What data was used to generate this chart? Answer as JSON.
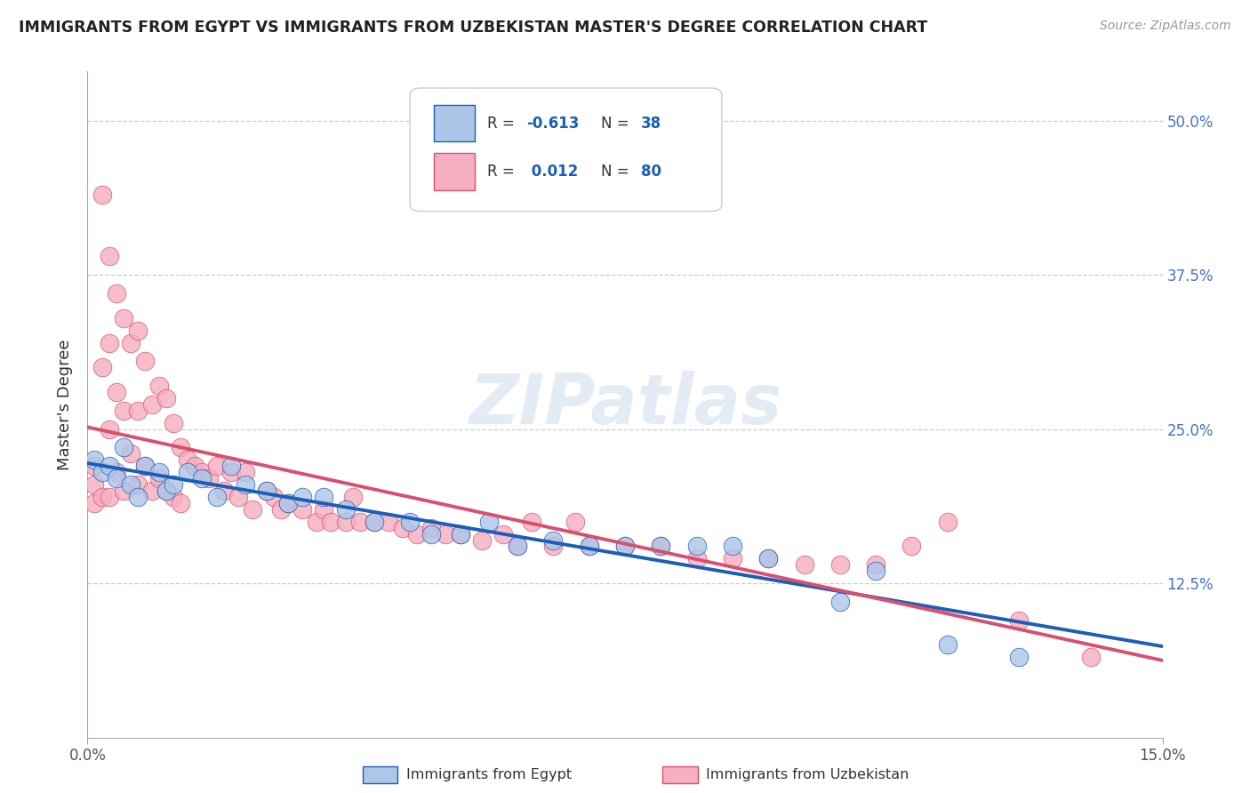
{
  "title": "IMMIGRANTS FROM EGYPT VS IMMIGRANTS FROM UZBEKISTAN MASTER'S DEGREE CORRELATION CHART",
  "source": "Source: ZipAtlas.com",
  "ylabel": "Master's Degree",
  "y_ticks": [
    0.125,
    0.25,
    0.375,
    0.5
  ],
  "y_tick_labels": [
    "12.5%",
    "25.0%",
    "37.5%",
    "50.0%"
  ],
  "x_lim": [
    0.0,
    0.15
  ],
  "y_lim": [
    0.0,
    0.54
  ],
  "watermark": "ZIPatlas",
  "blue_color": "#adc6e8",
  "pink_color": "#f5afc0",
  "blue_line_color": "#1a5eb8",
  "pink_line_color": "#d94f6e",
  "egypt_x": [
    0.001,
    0.002,
    0.003,
    0.004,
    0.005,
    0.006,
    0.007,
    0.008,
    0.01,
    0.011,
    0.012,
    0.014,
    0.016,
    0.018,
    0.02,
    0.022,
    0.025,
    0.028,
    0.03,
    0.033,
    0.036,
    0.04,
    0.045,
    0.048,
    0.052,
    0.056,
    0.06,
    0.065,
    0.07,
    0.075,
    0.08,
    0.085,
    0.09,
    0.095,
    0.105,
    0.11,
    0.12,
    0.13
  ],
  "egypt_y": [
    0.225,
    0.215,
    0.22,
    0.21,
    0.235,
    0.205,
    0.195,
    0.22,
    0.215,
    0.2,
    0.205,
    0.215,
    0.21,
    0.195,
    0.22,
    0.205,
    0.2,
    0.19,
    0.195,
    0.195,
    0.185,
    0.175,
    0.175,
    0.165,
    0.165,
    0.175,
    0.155,
    0.16,
    0.155,
    0.155,
    0.155,
    0.155,
    0.155,
    0.145,
    0.11,
    0.135,
    0.075,
    0.065
  ],
  "uzbek_x": [
    0.001,
    0.001,
    0.001,
    0.002,
    0.002,
    0.002,
    0.003,
    0.003,
    0.003,
    0.003,
    0.004,
    0.004,
    0.004,
    0.005,
    0.005,
    0.005,
    0.006,
    0.006,
    0.007,
    0.007,
    0.007,
    0.008,
    0.008,
    0.009,
    0.009,
    0.01,
    0.01,
    0.011,
    0.011,
    0.012,
    0.012,
    0.013,
    0.013,
    0.014,
    0.015,
    0.016,
    0.017,
    0.018,
    0.019,
    0.02,
    0.021,
    0.022,
    0.023,
    0.025,
    0.026,
    0.027,
    0.028,
    0.03,
    0.032,
    0.033,
    0.034,
    0.036,
    0.037,
    0.038,
    0.04,
    0.042,
    0.044,
    0.046,
    0.048,
    0.05,
    0.052,
    0.055,
    0.058,
    0.06,
    0.062,
    0.065,
    0.068,
    0.07,
    0.075,
    0.08,
    0.085,
    0.09,
    0.095,
    0.1,
    0.105,
    0.11,
    0.115,
    0.12,
    0.13,
    0.14
  ],
  "uzbek_y": [
    0.22,
    0.205,
    0.19,
    0.44,
    0.3,
    0.195,
    0.39,
    0.32,
    0.25,
    0.195,
    0.36,
    0.28,
    0.215,
    0.34,
    0.265,
    0.2,
    0.32,
    0.23,
    0.33,
    0.265,
    0.205,
    0.305,
    0.22,
    0.27,
    0.2,
    0.285,
    0.21,
    0.275,
    0.2,
    0.255,
    0.195,
    0.235,
    0.19,
    0.225,
    0.22,
    0.215,
    0.21,
    0.22,
    0.2,
    0.215,
    0.195,
    0.215,
    0.185,
    0.2,
    0.195,
    0.185,
    0.19,
    0.185,
    0.175,
    0.185,
    0.175,
    0.175,
    0.195,
    0.175,
    0.175,
    0.175,
    0.17,
    0.165,
    0.17,
    0.165,
    0.165,
    0.16,
    0.165,
    0.155,
    0.175,
    0.155,
    0.175,
    0.155,
    0.155,
    0.155,
    0.145,
    0.145,
    0.145,
    0.14,
    0.14,
    0.14,
    0.155,
    0.175,
    0.095,
    0.065
  ]
}
